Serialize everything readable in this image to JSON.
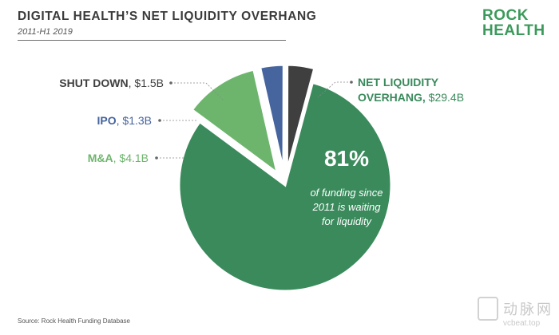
{
  "header": {
    "title": "DIGITAL HEALTH’S NET LIQUIDITY OVERHANG",
    "subtitle": "2011-H1 2019"
  },
  "logo": {
    "line1": "ROCK",
    "line2": "HEALTH"
  },
  "source": "Source: Rock Health Funding Database",
  "watermark": {
    "brand": "动脉网",
    "url": "vcbeat.top"
  },
  "chart_data": {
    "type": "pie",
    "title": "DIGITAL HEALTH’S NET LIQUIDITY OVERHANG",
    "subtitle": "2011-H1 2019",
    "unit": "$B",
    "slices": [
      {
        "label": "NET LIQUIDITY OVERHANG",
        "label_line1": "NET LIQUIDITY",
        "label_line2_bold": "OVERHANG,",
        "value_text": " $29.4B",
        "value": 29.4,
        "color": "#3a8a5c"
      },
      {
        "label": "M&A",
        "label_bold": "M&A",
        "value_text": ", $4.1B",
        "value": 4.1,
        "color": "#6db56d"
      },
      {
        "label": "IPO",
        "label_bold": "IPO",
        "value_text": ", $1.3B",
        "value": 1.3,
        "color": "#46649e"
      },
      {
        "label": "SHUT DOWN",
        "label_bold": "SHUT DOWN",
        "value_text": ", $1.5B",
        "value": 1.5,
        "color": "#3f3f3f"
      }
    ],
    "center_annotation": {
      "percent": "81%",
      "lines": [
        "of funding since",
        "2011 is waiting",
        "for liquidity"
      ]
    },
    "label_colors": {
      "NET LIQUIDITY OVERHANG": "#3a8a5c",
      "M&A": "#6db56d",
      "IPO": "#46649e",
      "SHUT DOWN": "#3f3f3f"
    }
  }
}
